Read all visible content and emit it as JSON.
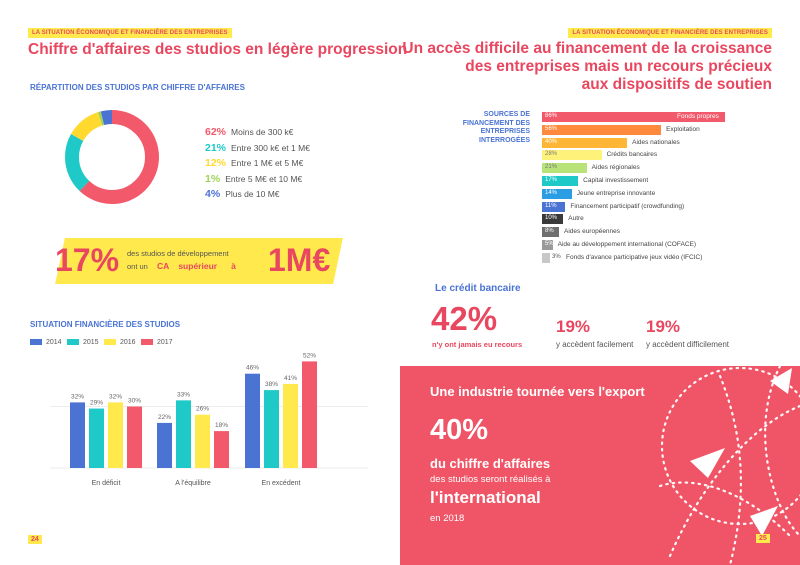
{
  "left": {
    "tag": "LA SITUATION ÉCONOMIQUE ET FINANCIÈRE DES ENTREPRISES",
    "title": "Chiffre d'affaires des studios en légère progression",
    "donut": {
      "section_title": "RÉPARTITION DES STUDIOS PAR CHIFFRE D'AFFAIRES",
      "items": [
        {
          "pct": "62%",
          "label": "Moins de 300 k€",
          "value": 62,
          "color": "#f2596a"
        },
        {
          "pct": "21%",
          "label": "Entre 300 k€ et 1 M€",
          "value": 21,
          "color": "#1fc9c7"
        },
        {
          "pct": "12%",
          "label": "Entre 1 M€ et 5 M€",
          "value": 12,
          "color": "#ffd92e"
        },
        {
          "pct": "1%",
          "label": "Entre 5 M€ et 10 M€",
          "value": 1,
          "color": "#9fd45a"
        },
        {
          "pct": "4%",
          "label": "Plus de 10 M€",
          "value": 4,
          "color": "#4a73d4"
        }
      ]
    },
    "banner": {
      "pct": "17%",
      "text_line1": "des studios de développement",
      "text_line2_pre": "ont un",
      "text_ca": "CA",
      "text_sup": "supérieur",
      "text_a": "à",
      "amount": "1M€"
    },
    "page_num": "24"
  },
  "chart_data": [
    {
      "type": "pie",
      "title": "RÉPARTITION DES STUDIOS PAR CHIFFRE D'AFFAIRES",
      "categories": [
        "Moins de 300 k€",
        "Entre 300 k€ et 1 M€",
        "Entre 1 M€ et 5 M€",
        "Entre 5 M€ et 10 M€",
        "Plus de 10 M€"
      ],
      "values": [
        62,
        21,
        12,
        1,
        4
      ]
    },
    {
      "type": "bar",
      "title": "SITUATION FINANCIÈRE DES STUDIOS",
      "categories": [
        "En déficit",
        "A l'équilibre",
        "En excédent"
      ],
      "series": [
        {
          "name": "2014",
          "values": [
            32,
            22,
            46
          ],
          "color": "#4a73d4"
        },
        {
          "name": "2015",
          "values": [
            29,
            33,
            38
          ],
          "color": "#1fc9c7"
        },
        {
          "name": "2016",
          "values": [
            32,
            26,
            41
          ],
          "color": "#ffe94d"
        },
        {
          "name": "2017",
          "values": [
            30,
            18,
            52
          ],
          "color": "#f2596a"
        }
      ],
      "value_suffix": "%"
    },
    {
      "type": "bar",
      "orientation": "horizontal",
      "title": "SOURCES DE FINANCEMENT DES ENTREPRISES INTERROGÉES",
      "categories": [
        "Fonds propres",
        "Exploitation",
        "Aides nationales",
        "Crédits bancaires",
        "Aides régionales",
        "Capital investissement",
        "Jeune entreprise innovante",
        "Financement participatif (crowdfunding)",
        "Autre",
        "Aides européennes",
        "Aide au développement international (COFACE)",
        "Fonds d'avance participative jeux vidéo (IFCIC)"
      ],
      "values": [
        86,
        56,
        40,
        28,
        21,
        17,
        14,
        11,
        10,
        8,
        5,
        3
      ],
      "value_labels": [
        "86%",
        "56%",
        "40%",
        "28%",
        "21%",
        "17%",
        "14%",
        "11%",
        "10%",
        "8%",
        "5%",
        "3%"
      ],
      "colors": [
        "#f2596a",
        "#ff8a3d",
        "#ffb637",
        "#fff27a",
        "#b8e27a",
        "#1fc9c7",
        "#2a9de3",
        "#4a73d4",
        "#3a3a3a",
        "#6e6e6e",
        "#9a9a9a",
        "#c8c8c8"
      ]
    }
  ],
  "barchart": {
    "section_title": "SITUATION FINANCIÈRE DES STUDIOS"
  },
  "right": {
    "tag": "LA SITUATION ÉCONOMIQUE ET FINANCIÈRE DES ENTREPRISES",
    "title_lines": [
      "Un accès difficile au financement de la croissance",
      "des entreprises mais un recours précieux",
      "aux dispositifs de soutien"
    ],
    "sources_title_lines": [
      "SOURCES DE",
      "FINANCEMENT DES",
      "ENTREPRISES",
      "INTERROGÉES"
    ],
    "credit": {
      "title": "Le crédit bancaire",
      "big": "42%",
      "big_sub": "n'y ont jamais eu recours",
      "s1": "19%",
      "s1_sub": "y accèdent facilement",
      "s2": "19%",
      "s2_sub": "y accèdent difficilement"
    },
    "export": {
      "title": "Une industrie tournée vers l'export",
      "pct": "40%",
      "line1": "du chiffre d'affaires",
      "line2": "des studios seront réalisés à",
      "line3": "l'international",
      "line4": "en 2018"
    },
    "page_num": "25"
  }
}
